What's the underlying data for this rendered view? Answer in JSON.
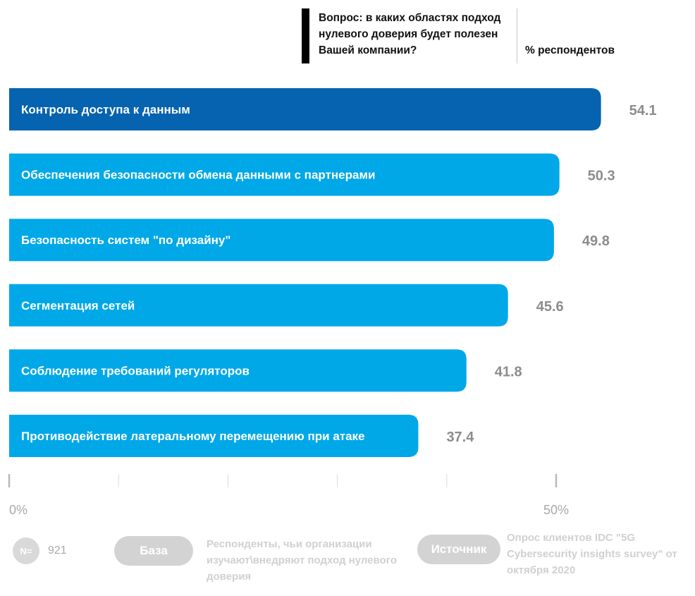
{
  "header": {
    "question": "Вопрос: в каких областях подход нулевого доверия будет полезен Вашей компании?",
    "unit_label": "% респондентов"
  },
  "chart_data": {
    "type": "bar",
    "orientation": "horizontal",
    "categories": [
      "Контроль доступа к данным",
      "Обеспечения безопасности обмена данными с партнерами",
      "Безопасность систем \"по дизайну\"",
      "Сегментация сетей",
      "Соблюдение требований регуляторов",
      "Противодействие латеральному перемещению при атаке"
    ],
    "values": [
      54.1,
      50.3,
      49.8,
      45.6,
      41.8,
      37.4
    ],
    "value_labels": [
      "54.1",
      "50.3",
      "49.8",
      "45.6",
      "41.8",
      "37.4"
    ],
    "highlight_color": "#0563B0",
    "bar_color": "#00A8E8",
    "value_color": "#8C8C8C",
    "xlim": [
      0,
      50
    ],
    "ticks": [
      "0%",
      "",
      "",
      "",
      "",
      "50%"
    ],
    "title": "",
    "xlabel": "",
    "ylabel": ""
  },
  "footer": {
    "n_symbol": "N=",
    "n_value": "921",
    "base_label": "База",
    "base_text": "Респонденты, чьи организации изучают\\внедряют подход нулевого доверия",
    "source_label": "Источник",
    "source_text": "Опрос клиентов IDC \"5G Cybersecurity insights survey\" от октября 2020"
  }
}
